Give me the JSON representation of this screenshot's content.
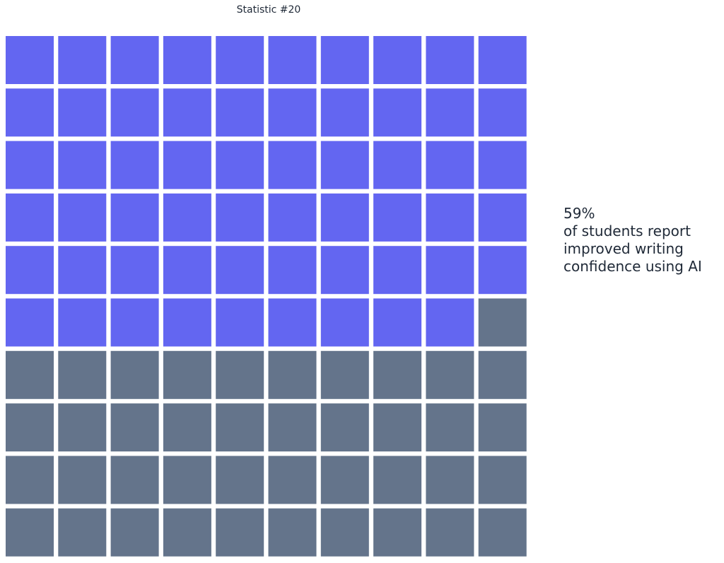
{
  "chart_data": {
    "type": "waffle",
    "title": "Statistic #20",
    "value_percent": 59,
    "total_cells": 100,
    "rows": 10,
    "cols": 10,
    "filled_color": "#6366f1",
    "empty_color": "#64748b",
    "annotation": {
      "value_label": "59%",
      "lines": [
        "of students report",
        "improved writing",
        "confidence using AI"
      ]
    }
  }
}
